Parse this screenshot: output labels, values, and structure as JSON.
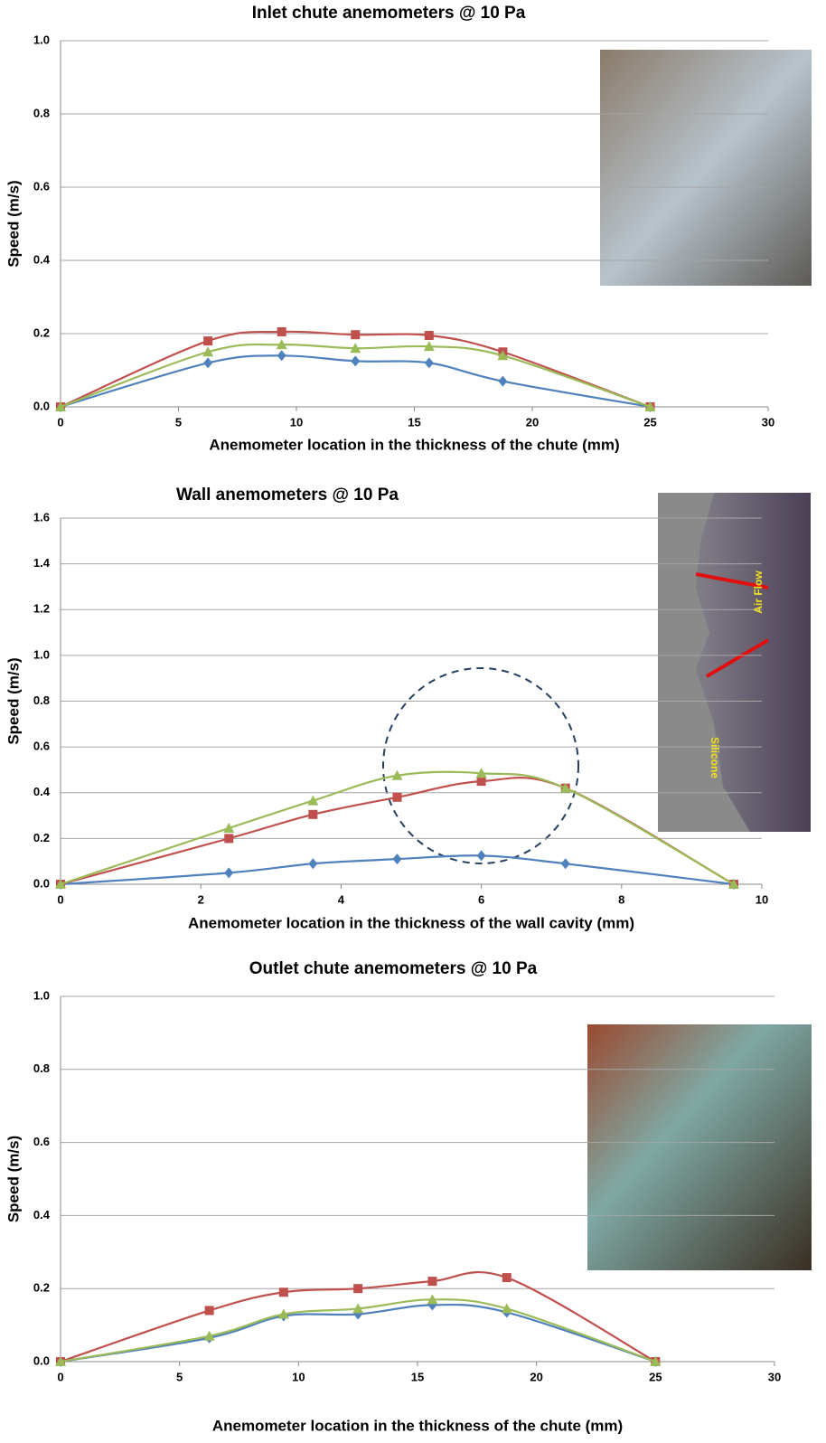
{
  "chart_data": [
    {
      "type": "line",
      "title": "Inlet chute anemometers @ 10 Pa",
      "xlabel": "Anemometer  location  in the thickness  of the chute (mm)",
      "ylabel": "Speed (m/s)",
      "x": [
        0,
        6.25,
        9.375,
        12.5,
        15.625,
        18.75,
        25
      ],
      "series": [
        {
          "color": "#4f81bd",
          "marker": "diamond",
          "values": [
            0,
            0.12,
            0.14,
            0.125,
            0.12,
            0.07,
            0
          ]
        },
        {
          "color": "#c0504d",
          "marker": "square",
          "values": [
            0,
            0.18,
            0.205,
            0.197,
            0.195,
            0.15,
            0
          ]
        },
        {
          "color": "#9bbb59",
          "marker": "triangle",
          "values": [
            0,
            0.15,
            0.17,
            0.16,
            0.165,
            0.14,
            0
          ]
        }
      ],
      "xlim": [
        0,
        30
      ],
      "xticks": [
        0,
        5,
        10,
        15,
        20,
        25,
        30
      ],
      "ylim": [
        0,
        1
      ],
      "yticks": [
        {
          "value": 0,
          "label": "0.0"
        },
        0.2,
        0.4,
        0.6,
        0.8,
        {
          "value": 1,
          "label": "1.0"
        }
      ],
      "grid": true
    },
    {
      "type": "line",
      "title": "Wall anemometers @ 10 Pa",
      "xlabel": "Anemometer location in the thickness of the wall cavity (mm)",
      "ylabel": "Speed (m/s)",
      "x": [
        0,
        2.4,
        3.6,
        4.8,
        6,
        7.2,
        9.6
      ],
      "series": [
        {
          "color": "#4f81bd",
          "marker": "diamond",
          "values": [
            0,
            0.05,
            0.09,
            0.11,
            0.125,
            0.09,
            0
          ]
        },
        {
          "color": "#c0504d",
          "marker": "square",
          "values": [
            0,
            0.2,
            0.305,
            0.38,
            0.45,
            0.42,
            0
          ]
        },
        {
          "color": "#9bbb59",
          "marker": "triangle",
          "values": [
            0,
            0.245,
            0.365,
            0.475,
            0.485,
            0.42,
            0
          ]
        }
      ],
      "xlim": [
        0,
        10
      ],
      "xticks": [
        0,
        2,
        4,
        6,
        8,
        10
      ],
      "ylim": [
        0,
        1.6
      ],
      "yticks": [
        {
          "value": 0,
          "label": "0.0"
        },
        0.2,
        0.4,
        0.6,
        0.8,
        {
          "value": 1,
          "label": "1.0"
        },
        1.2,
        1.4,
        1.6
      ],
      "grid": true,
      "annotations": [
        "Air Flow",
        "Silicone"
      ]
    },
    {
      "type": "line",
      "title": "Outlet chute anemometers @ 10 Pa",
      "xlabel": "Anemometer  location  in the thickness  of the chute (mm)",
      "ylabel": "Speed (m/s)",
      "x": [
        0,
        6.25,
        9.375,
        12.5,
        15.625,
        18.75,
        25
      ],
      "series": [
        {
          "color": "#4f81bd",
          "marker": "diamond",
          "values": [
            0,
            0.065,
            0.125,
            0.13,
            0.155,
            0.135,
            0
          ]
        },
        {
          "color": "#c0504d",
          "marker": "square",
          "values": [
            0,
            0.14,
            0.19,
            0.2,
            0.22,
            0.23,
            0
          ]
        },
        {
          "color": "#9bbb59",
          "marker": "triangle",
          "values": [
            0,
            0.07,
            0.13,
            0.145,
            0.17,
            0.145,
            0
          ]
        }
      ],
      "xlim": [
        0,
        30
      ],
      "xticks": [
        0,
        5,
        10,
        15,
        20,
        25,
        30
      ],
      "ylim": [
        0,
        1
      ],
      "yticks": [
        {
          "value": 0,
          "label": "0.0"
        },
        0.2,
        0.4,
        0.6,
        0.8,
        {
          "value": 1,
          "label": "1.0"
        }
      ],
      "grid": true
    }
  ]
}
